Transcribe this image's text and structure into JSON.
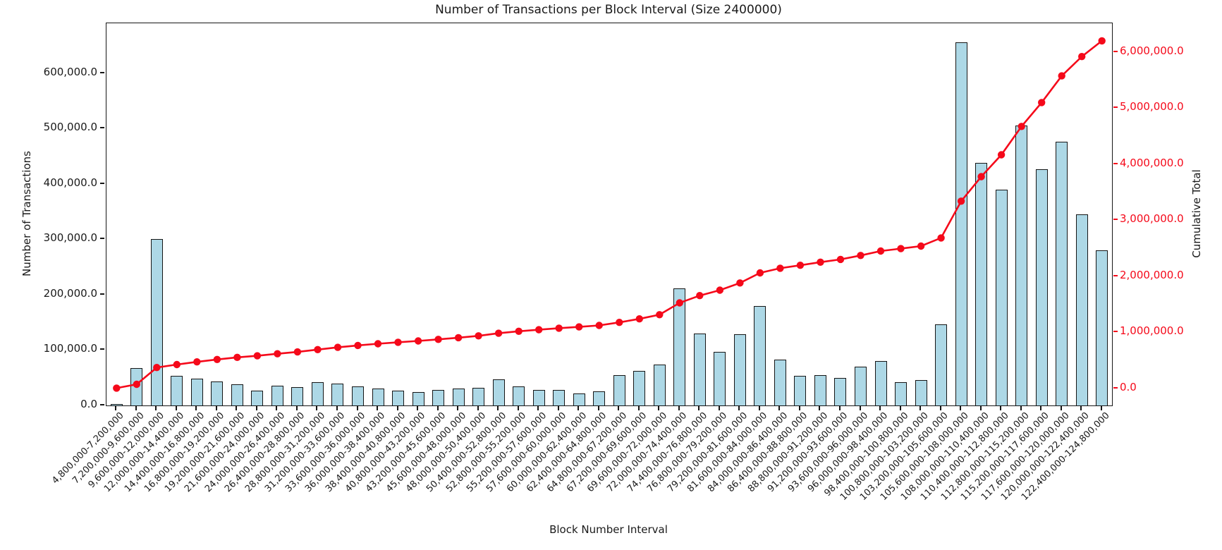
{
  "chart_data": {
    "type": "bar",
    "title": "Number of Transactions per Block Interval (Size 2400000)",
    "xlabel": "Block Number Interval",
    "ylabel_left": "Number of Transactions",
    "ylabel_right": "Cumulative Total",
    "grid": false,
    "legend": null,
    "categories": [
      "4,800,000-7,200,000",
      "7,200,000-9,600,000",
      "9,600,000-12,000,000",
      "12,000,000-14,400,000",
      "14,400,000-16,800,000",
      "16,800,000-19,200,000",
      "19,200,000-21,600,000",
      "21,600,000-24,000,000",
      "24,000,000-26,400,000",
      "26,400,000-28,800,000",
      "28,800,000-31,200,000",
      "31,200,000-33,600,000",
      "33,600,000-36,000,000",
      "36,000,000-38,400,000",
      "38,400,000-40,800,000",
      "40,800,000-43,200,000",
      "43,200,000-45,600,000",
      "45,600,000-48,000,000",
      "48,000,000-50,400,000",
      "50,400,000-52,800,000",
      "52,800,000-55,200,000",
      "55,200,000-57,600,000",
      "57,600,000-60,000,000",
      "60,000,000-62,400,000",
      "62,400,000-64,800,000",
      "64,800,000-67,200,000",
      "67,200,000-69,600,000",
      "69,600,000-72,000,000",
      "72,000,000-74,400,000",
      "74,400,000-76,800,000",
      "76,800,000-79,200,000",
      "79,200,000-81,600,000",
      "81,600,000-84,000,000",
      "84,000,000-86,400,000",
      "86,400,000-88,800,000",
      "88,800,000-91,200,000",
      "91,200,000-93,600,000",
      "93,600,000-96,000,000",
      "96,000,000-98,400,000",
      "98,400,000-100,800,000",
      "100,800,000-103,200,000",
      "103,200,000-105,600,000",
      "105,600,000-108,000,000",
      "108,000,000-110,400,000",
      "110,400,000-112,800,000",
      "112,800,000-115,200,000",
      "115,200,000-117,600,000",
      "117,600,000-120,000,000",
      "120,000,000-122,400,000",
      "122,400,000-124,800,000"
    ],
    "series": [
      {
        "name": "Number of Transactions",
        "type": "bar",
        "axis": "left",
        "values": [
          2000,
          67000,
          300000,
          53000,
          48000,
          43000,
          38000,
          27000,
          36000,
          33000,
          42000,
          40000,
          34000,
          30000,
          27000,
          24000,
          28000,
          30000,
          32000,
          47000,
          35000,
          28000,
          28000,
          22000,
          26000,
          55000,
          63000,
          74000,
          211000,
          130000,
          97000,
          128000,
          180000,
          83000,
          53000,
          55000,
          50000,
          70000,
          80000,
          42000,
          46000,
          146000,
          656000,
          438000,
          390000,
          505000,
          427000,
          476000,
          345000,
          280000
        ]
      },
      {
        "name": "Cumulative Total",
        "type": "line",
        "axis": "right",
        "values": [
          2000,
          69000,
          369000,
          422000,
          470000,
          513000,
          551000,
          578000,
          614000,
          647000,
          689000,
          729000,
          763000,
          793000,
          820000,
          844000,
          872000,
          902000,
          934000,
          981000,
          1016000,
          1044000,
          1072000,
          1094000,
          1120000,
          1175000,
          1238000,
          1312000,
          1523000,
          1653000,
          1750000,
          1878000,
          2058000,
          2141000,
          2194000,
          2249000,
          2299000,
          2369000,
          2449000,
          2491000,
          2537000,
          2683000,
          3339000,
          3777000,
          4167000,
          4672000,
          5099000,
          5575000,
          5920000,
          6200000
        ]
      }
    ],
    "left_axis": {
      "lim": [
        0,
        690000
      ],
      "tick_values": [
        0,
        100000,
        200000,
        300000,
        400000,
        500000,
        600000
      ],
      "tick_labels": [
        "0.0",
        "100,000.0",
        "200,000.0",
        "300,000.0",
        "400,000.0",
        "500,000.0",
        "600,000.0"
      ]
    },
    "right_axis": {
      "lim": [
        -308000,
        6514000
      ],
      "tick_values": [
        0,
        1000000,
        2000000,
        3000000,
        4000000,
        5000000,
        6000000
      ],
      "tick_labels": [
        "0.0",
        "1,000,000.0",
        "2,000,000.0",
        "3,000,000.0",
        "4,000,000.0",
        "5,000,000.0",
        "6,000,000.0"
      ]
    },
    "colors": {
      "bar_fill": "#ADD8E6",
      "bar_edge": "#161616",
      "line": "#f5091a",
      "right_axis_text": "#f5091a",
      "left_axis_text": "#1a1a1a",
      "background": "#ffffff"
    }
  }
}
